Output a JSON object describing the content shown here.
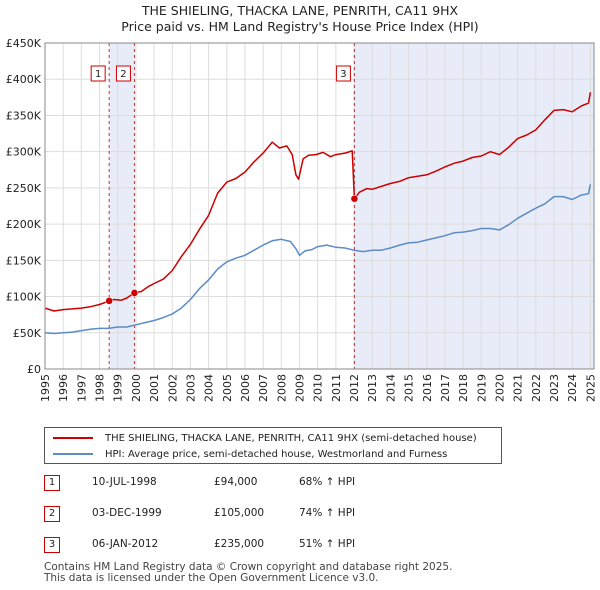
{
  "title_line1": "THE SHIELING, THACKA LANE, PENRITH, CA11 9HX",
  "title_line2": "Price paid vs. HM Land Registry's House Price Index (HPI)",
  "chart_data": {
    "type": "line",
    "xlim": [
      1995,
      2025.2
    ],
    "ylim": [
      0,
      450000
    ],
    "x_ticks": [
      1995,
      1996,
      1997,
      1998,
      1999,
      2000,
      2001,
      2002,
      2003,
      2004,
      2005,
      2006,
      2007,
      2008,
      2009,
      2010,
      2011,
      2012,
      2013,
      2014,
      2015,
      2016,
      2017,
      2018,
      2019,
      2020,
      2021,
      2022,
      2023,
      2024,
      2025
    ],
    "y_ticks": [
      {
        "value": 0,
        "label": "£0"
      },
      {
        "value": 50000,
        "label": "£50K"
      },
      {
        "value": 100000,
        "label": "£100K"
      },
      {
        "value": 150000,
        "label": "£150K"
      },
      {
        "value": 200000,
        "label": "£200K"
      },
      {
        "value": 250000,
        "label": "£250K"
      },
      {
        "value": 300000,
        "label": "£300K"
      },
      {
        "value": 350000,
        "label": "£350K"
      },
      {
        "value": 400000,
        "label": "£400K"
      },
      {
        "value": 450000,
        "label": "£450K"
      }
    ],
    "grid": true,
    "series": [
      {
        "name": "THE SHIELING, THACKA LANE, PENRITH, CA11 9HX (semi-detached house)",
        "color": "#cc0000",
        "x": [
          1995.0,
          1995.5,
          1996.0,
          1996.5,
          1997.0,
          1997.5,
          1998.0,
          1998.53,
          1998.8,
          1999.2,
          1999.5,
          1999.92,
          2000.3,
          2000.7,
          2001.0,
          2001.5,
          2002.0,
          2002.5,
          2003.0,
          2003.5,
          2004.0,
          2004.5,
          2005.0,
          2005.5,
          2006.0,
          2006.5,
          2007.0,
          2007.5,
          2007.9,
          2008.3,
          2008.6,
          2008.8,
          2008.95,
          2009.2,
          2009.5,
          2009.9,
          2010.3,
          2010.7,
          2011.0,
          2011.5,
          2011.9,
          2012.02,
          2012.3,
          2012.7,
          2013.0,
          2013.5,
          2014.0,
          2014.5,
          2015.0,
          2015.5,
          2016.0,
          2016.5,
          2017.0,
          2017.5,
          2018.0,
          2018.5,
          2019.0,
          2019.5,
          2020.0,
          2020.5,
          2021.0,
          2021.5,
          2022.0,
          2022.5,
          2023.0,
          2023.5,
          2024.0,
          2024.5,
          2024.9,
          2025.0
        ],
        "y": [
          84000,
          80000,
          82000,
          83000,
          84000,
          86000,
          89000,
          94000,
          96000,
          95000,
          98000,
          105000,
          107000,
          114000,
          118000,
          124000,
          136000,
          155000,
          172000,
          193000,
          212000,
          243000,
          258000,
          263000,
          272000,
          286000,
          298000,
          313000,
          305000,
          308000,
          296000,
          268000,
          262000,
          290000,
          295000,
          296000,
          299000,
          293000,
          296000,
          298000,
          301000,
          235000,
          244000,
          249000,
          248000,
          252000,
          256000,
          259000,
          264000,
          266000,
          268000,
          273000,
          279000,
          284000,
          287000,
          292000,
          294000,
          300000,
          296000,
          306000,
          318000,
          323000,
          330000,
          344000,
          357000,
          358000,
          355000,
          363000,
          367000,
          382000
        ]
      },
      {
        "name": "HPI: Average price, semi-detached house, Westmorland and Furness",
        "color": "#5b8cc6",
        "x": [
          1995.0,
          1995.5,
          1996.0,
          1996.5,
          1997.0,
          1997.5,
          1998.0,
          1998.5,
          1999.0,
          1999.5,
          2000.0,
          2000.5,
          2001.0,
          2001.5,
          2002.0,
          2002.5,
          2003.0,
          2003.5,
          2004.0,
          2004.5,
          2005.0,
          2005.5,
          2006.0,
          2006.5,
          2007.0,
          2007.5,
          2008.0,
          2008.5,
          2008.8,
          2009.0,
          2009.3,
          2009.7,
          2010.0,
          2010.5,
          2011.0,
          2011.5,
          2012.0,
          2012.5,
          2013.0,
          2013.5,
          2014.0,
          2014.5,
          2015.0,
          2015.5,
          2016.0,
          2016.5,
          2017.0,
          2017.5,
          2018.0,
          2018.5,
          2019.0,
          2019.5,
          2020.0,
          2020.5,
          2021.0,
          2021.5,
          2022.0,
          2022.5,
          2023.0,
          2023.5,
          2024.0,
          2024.5,
          2024.9,
          2025.0
        ],
        "y": [
          50000,
          49000,
          50000,
          51000,
          53000,
          55000,
          56000,
          56000,
          58000,
          58000,
          61000,
          64000,
          67000,
          71000,
          76000,
          84000,
          96000,
          111000,
          123000,
          138000,
          148000,
          153000,
          157000,
          164000,
          171000,
          177000,
          179000,
          176000,
          166000,
          157000,
          163000,
          165000,
          169000,
          171000,
          168000,
          167000,
          164000,
          162000,
          164000,
          164000,
          167000,
          171000,
          174000,
          175000,
          178000,
          181000,
          184000,
          188000,
          189000,
          191000,
          194000,
          194000,
          192000,
          199000,
          208000,
          215000,
          222000,
          228000,
          238000,
          238000,
          234000,
          240000,
          242000,
          255000
        ]
      }
    ],
    "transactions": [
      {
        "num": "1",
        "x": 1998.53,
        "y": 94000,
        "date": "10-JUL-1998",
        "price": "£94,000",
        "hpi": "68% ↑ HPI"
      },
      {
        "num": "2",
        "x": 1999.92,
        "y": 105000,
        "date": "03-DEC-1999",
        "price": "£105,000",
        "hpi": "74% ↑ HPI"
      },
      {
        "num": "3",
        "x": 2012.02,
        "y": 235000,
        "date": "06-JAN-2012",
        "price": "£235,000",
        "hpi": "51% ↑ HPI"
      }
    ],
    "shaded_ranges": [
      [
        1998.53,
        1999.92
      ],
      [
        2012.02,
        2025.2
      ]
    ]
  },
  "footer_line1": "Contains HM Land Registry data © Crown copyright and database right 2025.",
  "footer_line2": "This data is licensed under the Open Government Licence v3.0."
}
